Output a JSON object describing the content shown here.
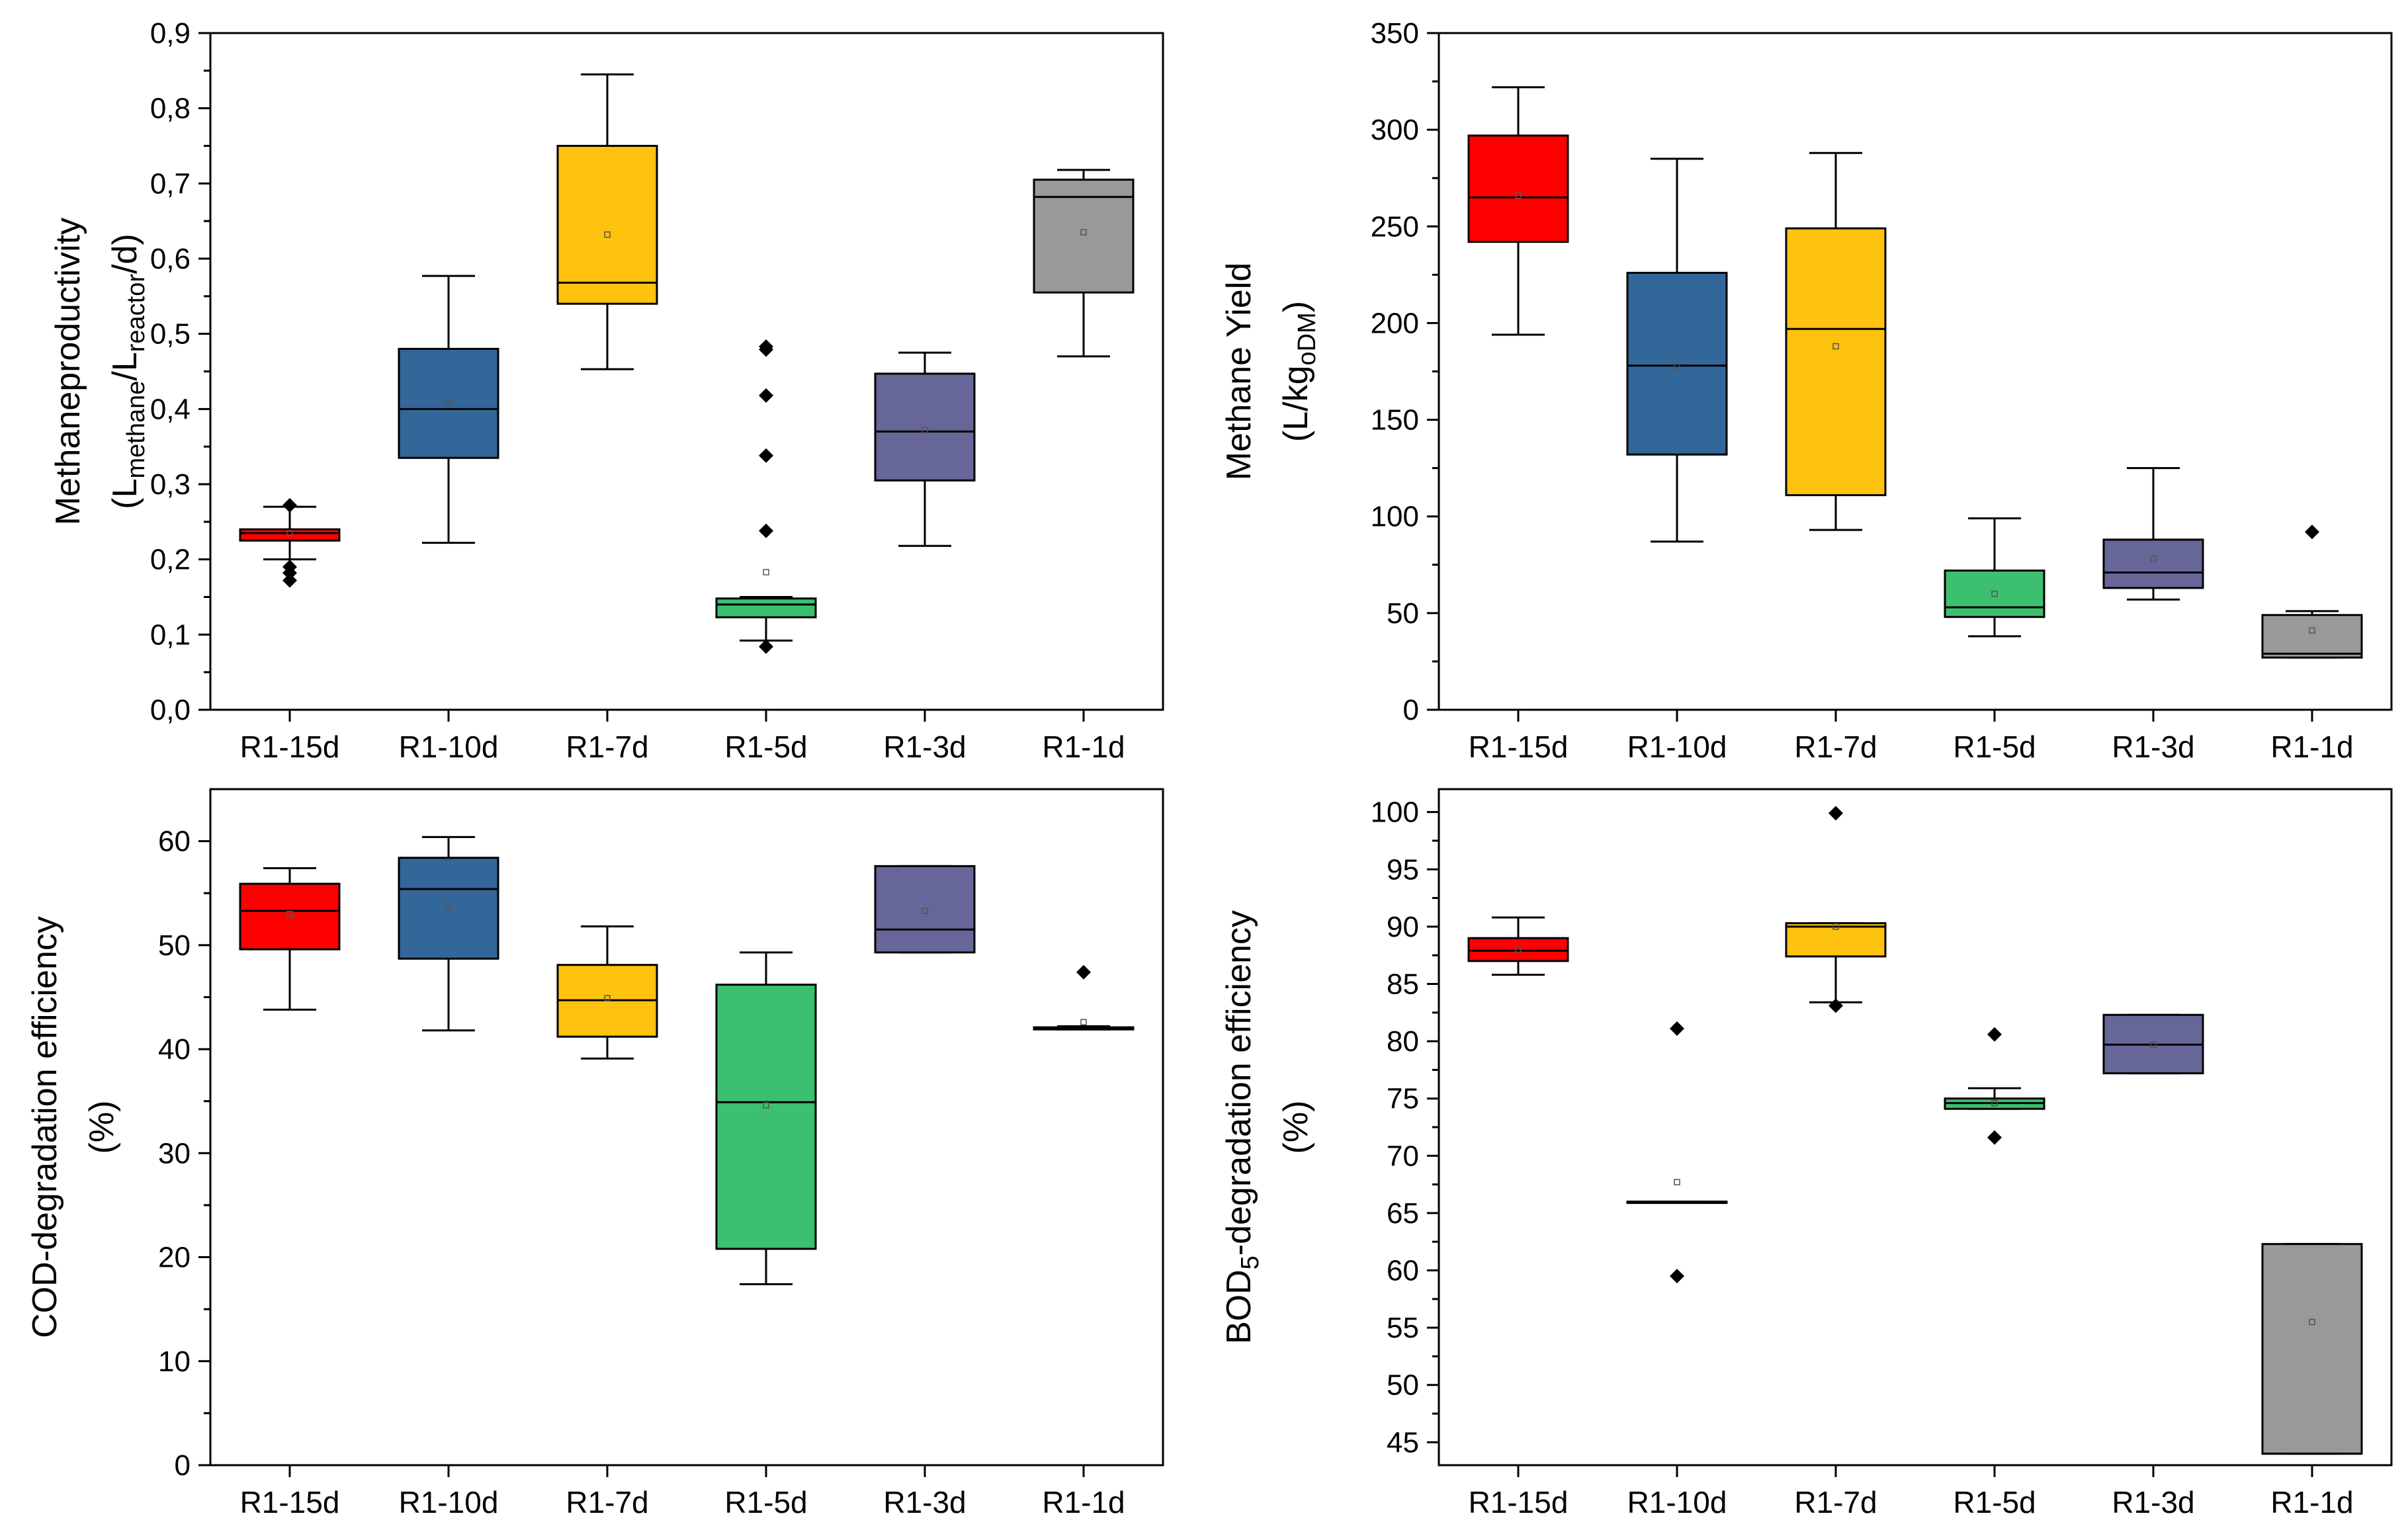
{
  "chart_data": [
    {
      "type": "box",
      "id": "methane-productivity",
      "title": "",
      "ylabel_lines": [
        {
          "parts": [
            {
              "t": "Methaneproductivity",
              "sub": false
            }
          ]
        },
        {
          "parts": [
            {
              "t": "(L",
              "sub": false
            },
            {
              "t": "methane",
              "sub": true
            },
            {
              "t": "/L",
              "sub": false
            },
            {
              "t": "reactor",
              "sub": true
            },
            {
              "t": "/d)",
              "sub": false
            }
          ]
        }
      ],
      "ylim": [
        0,
        0.9
      ],
      "yticks": [
        0,
        0.1,
        0.2,
        0.3,
        0.4,
        0.5,
        0.6,
        0.7,
        0.8,
        0.9
      ],
      "ytick_labels": [
        "0,0",
        "0,1",
        "0,2",
        "0,3",
        "0,4",
        "0,5",
        "0,6",
        "0,7",
        "0,8",
        "0,9"
      ],
      "categories": [
        "R1-15d",
        "R1-10d",
        "R1-7d",
        "R1-5d",
        "R1-3d",
        "R1-1d"
      ],
      "boxes": [
        {
          "category": "R1-15d",
          "color": "#ff0000",
          "whisker_low": 0.2,
          "q1": 0.225,
          "median": 0.235,
          "q3": 0.24,
          "whisker_high": 0.27,
          "mean": 0.235,
          "outliers": [
            0.272,
            0.19,
            0.182,
            0.172
          ]
        },
        {
          "category": "R1-10d",
          "color": "#336699",
          "whisker_low": 0.222,
          "q1": 0.335,
          "median": 0.4,
          "q3": 0.48,
          "whisker_high": 0.577,
          "mean": 0.408,
          "outliers": []
        },
        {
          "category": "R1-7d",
          "color": "#ffc20e",
          "whisker_low": 0.453,
          "q1": 0.54,
          "median": 0.568,
          "q3": 0.75,
          "whisker_high": 0.845,
          "mean": 0.632,
          "outliers": []
        },
        {
          "category": "R1-5d",
          "color": "#3cbf6e",
          "whisker_low": 0.092,
          "q1": 0.123,
          "median": 0.14,
          "q3": 0.148,
          "whisker_high": 0.15,
          "mean": 0.183,
          "outliers": [
            0.483,
            0.479,
            0.418,
            0.338,
            0.238,
            0.084
          ]
        },
        {
          "category": "R1-3d",
          "color": "#666699",
          "whisker_low": 0.218,
          "q1": 0.305,
          "median": 0.37,
          "q3": 0.447,
          "whisker_high": 0.475,
          "mean": 0.372,
          "outliers": []
        },
        {
          "category": "R1-1d",
          "color": "#999999",
          "whisker_low": 0.47,
          "q1": 0.555,
          "median": 0.682,
          "q3": 0.705,
          "whisker_high": 0.718,
          "mean": 0.635,
          "outliers": []
        }
      ]
    },
    {
      "type": "box",
      "id": "methane-yield",
      "title": "",
      "ylabel_lines": [
        {
          "parts": [
            {
              "t": "Methane Yield",
              "sub": false
            }
          ]
        },
        {
          "parts": [
            {
              "t": "(L/kg",
              "sub": false
            },
            {
              "t": "oDM",
              "sub": true
            },
            {
              "t": ")",
              "sub": false
            }
          ]
        }
      ],
      "ylim": [
        0,
        350
      ],
      "yticks": [
        0,
        50,
        100,
        150,
        200,
        250,
        300,
        350
      ],
      "ytick_labels": [
        "0",
        "50",
        "100",
        "150",
        "200",
        "250",
        "300",
        "350"
      ],
      "categories": [
        "R1-15d",
        "R1-10d",
        "R1-7d",
        "R1-5d",
        "R1-3d",
        "R1-1d"
      ],
      "boxes": [
        {
          "category": "R1-15d",
          "color": "#ff0000",
          "whisker_low": 194,
          "q1": 242,
          "median": 265,
          "q3": 297,
          "whisker_high": 322,
          "mean": 266,
          "outliers": []
        },
        {
          "category": "R1-10d",
          "color": "#336699",
          "whisker_low": 87,
          "q1": 132,
          "median": 178,
          "q3": 226,
          "whisker_high": 285,
          "mean": 178,
          "outliers": []
        },
        {
          "category": "R1-7d",
          "color": "#ffc20e",
          "whisker_low": 93,
          "q1": 111,
          "median": 197,
          "q3": 249,
          "whisker_high": 288,
          "mean": 188,
          "outliers": []
        },
        {
          "category": "R1-5d",
          "color": "#3cbf6e",
          "whisker_low": 38,
          "q1": 48,
          "median": 53,
          "q3": 72,
          "whisker_high": 99,
          "mean": 60,
          "outliers": []
        },
        {
          "category": "R1-3d",
          "color": "#666699",
          "whisker_low": 57,
          "q1": 63,
          "median": 71,
          "q3": 88,
          "whisker_high": 125,
          "mean": 78,
          "outliers": []
        },
        {
          "category": "R1-1d",
          "color": "#999999",
          "whisker_low": 27,
          "q1": 27,
          "median": 29,
          "q3": 49,
          "whisker_high": 51,
          "mean": 41,
          "outliers": [
            92
          ]
        }
      ]
    },
    {
      "type": "box",
      "id": "cod-degradation",
      "title": "",
      "ylabel_lines": [
        {
          "parts": [
            {
              "t": "COD-degradation efficiency",
              "sub": false
            }
          ]
        },
        {
          "parts": [
            {
              "t": "(%)",
              "sub": false
            }
          ]
        }
      ],
      "ylim": [
        0,
        65
      ],
      "yticks": [
        0,
        10,
        20,
        30,
        40,
        50,
        60
      ],
      "ytick_labels": [
        "0",
        "10",
        "20",
        "30",
        "40",
        "50",
        "60"
      ],
      "categories": [
        "R1-15d",
        "R1-10d",
        "R1-7d",
        "R1-5d",
        "R1-3d",
        "R1-1d"
      ],
      "boxes": [
        {
          "category": "R1-15d",
          "color": "#ff0000",
          "whisker_low": 43.8,
          "q1": 49.6,
          "median": 53.3,
          "q3": 55.9,
          "whisker_high": 57.4,
          "mean": 53.0,
          "outliers": []
        },
        {
          "category": "R1-10d",
          "color": "#336699",
          "whisker_low": 41.8,
          "q1": 48.7,
          "median": 55.4,
          "q3": 58.4,
          "whisker_high": 60.4,
          "mean": 53.6,
          "outliers": []
        },
        {
          "category": "R1-7d",
          "color": "#ffc20e",
          "whisker_low": 39.1,
          "q1": 41.2,
          "median": 44.7,
          "q3": 48.1,
          "whisker_high": 51.8,
          "mean": 44.9,
          "outliers": []
        },
        {
          "category": "R1-5d",
          "color": "#3cbf6e",
          "whisker_low": 17.4,
          "q1": 20.8,
          "median": 34.9,
          "q3": 46.2,
          "whisker_high": 49.3,
          "mean": 34.6,
          "outliers": []
        },
        {
          "category": "R1-3d",
          "color": "#666699",
          "whisker_low": 49.3,
          "q1": 49.3,
          "median": 51.5,
          "q3": 57.6,
          "whisker_high": 57.6,
          "mean": 53.3,
          "outliers": []
        },
        {
          "category": "R1-1d",
          "color": "#999999",
          "whisker_low": 41.9,
          "q1": 41.9,
          "median": 42.0,
          "q3": 42.1,
          "whisker_high": 42.2,
          "mean": 42.6,
          "outliers": [
            47.4
          ]
        }
      ]
    },
    {
      "type": "box",
      "id": "bod5-degradation",
      "title": "",
      "ylabel_lines": [
        {
          "parts": [
            {
              "t": "BOD",
              "sub": false
            },
            {
              "t": "5",
              "sub": true
            },
            {
              "t": "-degradation efficiency",
              "sub": false
            }
          ]
        },
        {
          "parts": [
            {
              "t": "(%)",
              "sub": false
            }
          ]
        }
      ],
      "ylim": [
        43,
        102
      ],
      "yticks": [
        45,
        50,
        55,
        60,
        65,
        70,
        75,
        80,
        85,
        90,
        95,
        100
      ],
      "ytick_labels": [
        "45",
        "50",
        "55",
        "60",
        "65",
        "70",
        "75",
        "80",
        "85",
        "90",
        "95",
        "100"
      ],
      "categories": [
        "R1-15d",
        "R1-10d",
        "R1-7d",
        "R1-5d",
        "R1-3d",
        "R1-1d"
      ],
      "boxes": [
        {
          "category": "R1-15d",
          "color": "#ff0000",
          "whisker_low": 85.8,
          "q1": 87.0,
          "median": 87.9,
          "q3": 89.0,
          "whisker_high": 90.8,
          "mean": 88.0,
          "outliers": []
        },
        {
          "category": "R1-10d",
          "color": "#336699",
          "whisker_low": 66.0,
          "q1": 66.0,
          "median": 66.0,
          "q3": 66.0,
          "whisker_high": 66.0,
          "mean": 67.7,
          "outliers": [
            81.1,
            59.5
          ]
        },
        {
          "category": "R1-7d",
          "color": "#ffc20e",
          "whisker_low": 83.4,
          "q1": 87.4,
          "median": 90.0,
          "q3": 90.3,
          "whisker_high": 90.3,
          "mean": 90.0,
          "outliers": [
            99.9,
            83.1
          ]
        },
        {
          "category": "R1-5d",
          "color": "#3cbf6e",
          "whisker_low": 74.1,
          "q1": 74.1,
          "median": 74.6,
          "q3": 75.0,
          "whisker_high": 75.9,
          "mean": 74.6,
          "outliers": [
            80.6,
            71.6
          ]
        },
        {
          "category": "R1-3d",
          "color": "#666699",
          "whisker_low": 77.2,
          "q1": 77.2,
          "median": 79.7,
          "q3": 82.3,
          "whisker_high": 82.3,
          "mean": 79.7,
          "outliers": []
        },
        {
          "category": "R1-1d",
          "color": "#999999",
          "whisker_low": 44.0,
          "q1": 44.0,
          "median": 44.0,
          "q3": 62.3,
          "whisker_high": 62.3,
          "mean": 55.5,
          "outliers": []
        }
      ]
    }
  ]
}
